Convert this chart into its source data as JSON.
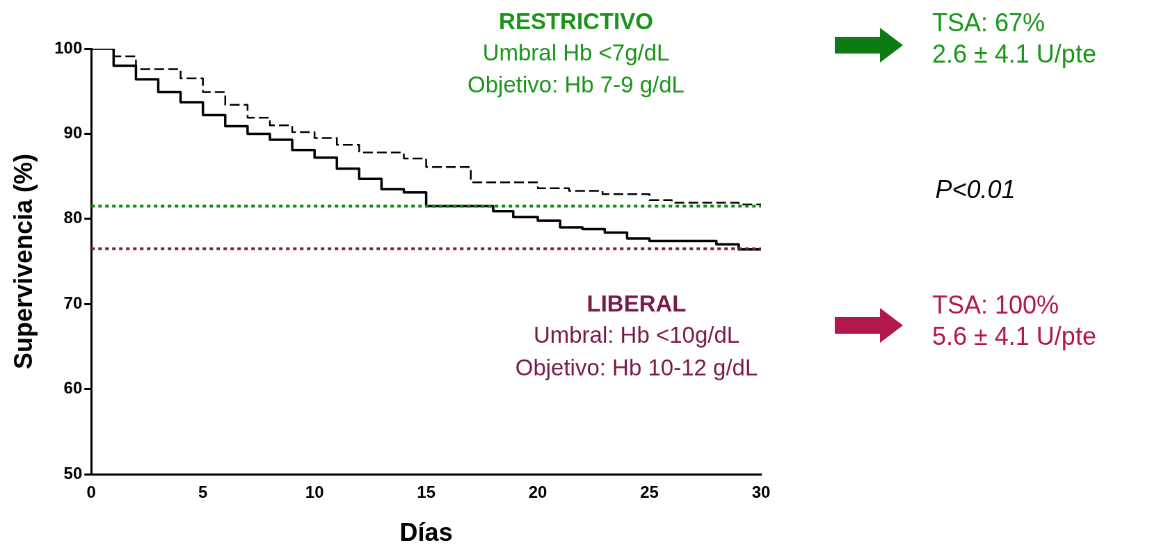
{
  "chart_data": {
    "type": "step",
    "xlabel": "Días",
    "ylabel": "Supervivencia (%)",
    "xlim": [
      0,
      30
    ],
    "xticks": [
      0,
      5,
      10,
      15,
      20,
      25,
      30
    ],
    "ylim": [
      50,
      100
    ],
    "yticks": [
      50,
      60,
      70,
      80,
      90,
      100
    ],
    "grid": false,
    "legend": false,
    "marker": "none",
    "series": [
      {
        "color": "#000000",
        "line_style": "solid",
        "x": [
          0,
          1,
          2,
          3,
          4,
          5,
          6,
          7,
          8,
          9,
          10,
          11,
          12,
          13,
          14,
          15,
          18,
          18.9,
          20,
          21,
          22,
          23,
          24,
          25,
          28,
          29,
          30
        ],
        "values": [
          100,
          98.0,
          96.4,
          94.9,
          93.7,
          92.2,
          90.9,
          90.0,
          89.3,
          88.1,
          87.2,
          85.9,
          84.7,
          83.5,
          83.1,
          81.5,
          80.9,
          80.2,
          79.8,
          79.0,
          78.8,
          78.4,
          77.7,
          77.4,
          77.0,
          76.4,
          76.4
        ]
      },
      {
        "color": "#000000",
        "line_style": "dashed",
        "x": [
          0,
          1,
          2,
          4,
          5,
          6,
          7,
          8,
          9,
          10,
          11,
          12,
          14,
          15,
          17,
          20,
          21.4,
          22.9,
          25,
          26,
          29,
          30
        ],
        "values": [
          100,
          99.1,
          97.6,
          96.5,
          94.9,
          93.4,
          91.9,
          91.0,
          90.2,
          89.5,
          88.7,
          87.8,
          87.1,
          86.1,
          84.3,
          83.6,
          83.3,
          82.9,
          82.2,
          81.9,
          81.7,
          81.7
        ]
      }
    ],
    "ref_lines": [
      {
        "axis": "y",
        "value": 81.5,
        "color": "#0a8f0a",
        "line_style": "dotted"
      },
      {
        "axis": "y",
        "value": 76.5,
        "color": "#7a1848",
        "line_style": "dotted"
      }
    ],
    "annotations": [
      "RESTRICTIVO",
      "Umbral Hb <7g/dL",
      "Objetivo: Hb 7-9 g/dL",
      "LIBERAL",
      "Umbral: Hb <10g/dL",
      "Objetivo: Hb 10-12 g/dL",
      "TSA: 67%",
      "2.6 ± 4.1 U/pte",
      "TSA: 100%",
      "5.6 ± 4.1 U/pte",
      "P<0.01"
    ]
  }
}
